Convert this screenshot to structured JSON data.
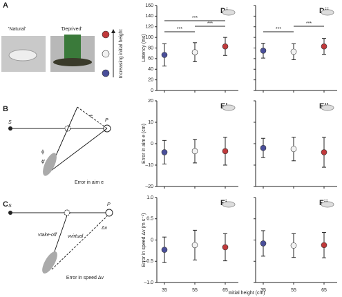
{
  "figure": {
    "panel_a": {
      "label": "A",
      "left": "'Natural'",
      "right": "'Deprived'",
      "arrow": "Increasing initial height"
    },
    "panel_b": {
      "label": "B",
      "s": "S",
      "p": "P",
      "e": "e",
      "phi": "ϕ",
      "phi2": "ϕ'",
      "caption": "Error in aim e"
    },
    "panel_c": {
      "label": "C",
      "s": "S",
      "p": "P",
      "v1": "vtake-off",
      "v2": "vvirtual",
      "dv": "Δv",
      "caption": "Error in speed Δv"
    },
    "xlabel": "Initial height (cm)"
  },
  "chart_data": [
    {
      "type": "errorbar",
      "panel": "Di",
      "ylabel": "Latency (ms)",
      "values": [
        67,
        72,
        83
      ],
      "errors": [
        21,
        18,
        17
      ],
      "colors": [
        "#4a4f9a",
        "#f2f2f2",
        "#c0393b"
      ],
      "ylim": [
        0,
        160
      ],
      "yticks": [
        0,
        20,
        40,
        60,
        80,
        100,
        120,
        140,
        160
      ],
      "annotations": [
        "***",
        "***",
        "***"
      ]
    },
    {
      "type": "errorbar",
      "panel": "Dii",
      "values": [
        75,
        73,
        83
      ],
      "errors": [
        14,
        15,
        15
      ],
      "colors": [
        "#4a4f9a",
        "#f2f2f2",
        "#c0393b"
      ],
      "ylim": [
        0,
        160
      ],
      "yticks": [
        0,
        20,
        40,
        60,
        80,
        100,
        120,
        140,
        160
      ],
      "annotations": [
        "***",
        "***"
      ]
    },
    {
      "type": "errorbar",
      "panel": "Ei",
      "ylabel": "Error in aim e (cm)",
      "values": [
        -4,
        -3.5,
        -3.5
      ],
      "errors": [
        5.5,
        5.5,
        6.5
      ],
      "colors": [
        "#4a4f9a",
        "#f2f2f2",
        "#c0393b"
      ],
      "ylim": [
        -20,
        20
      ],
      "yticks": [
        {
          "value": -20,
          "label": "–20"
        },
        {
          "value": -10,
          "label": "–10"
        },
        0,
        10,
        20
      ]
    },
    {
      "type": "errorbar",
      "panel": "Eii",
      "values": [
        -2,
        -2.5,
        -4
      ],
      "errors": [
        4.5,
        5.5,
        7
      ],
      "colors": [
        "#4a4f9a",
        "#f2f2f2",
        "#c0393b"
      ],
      "ylim": [
        -20,
        20
      ],
      "yticks": [
        -20,
        -10,
        0,
        10,
        20
      ]
    },
    {
      "type": "errorbar",
      "panel": "Fi",
      "ylabel": "Error in speed Δv (m s⁻¹)",
      "categories": [
        "35",
        "55",
        "65"
      ],
      "values": [
        -0.23,
        -0.12,
        -0.17
      ],
      "errors": [
        0.3,
        0.35,
        0.32
      ],
      "colors": [
        "#4a4f9a",
        "#f2f2f2",
        "#c0393b"
      ],
      "ylim": [
        -1,
        1
      ],
      "yticks": [
        {
          "value": -1,
          "label": "–1.0"
        },
        {
          "value": -0.5,
          "label": "–0.5"
        },
        0,
        {
          "value": 0.5,
          "label": "0.5"
        },
        {
          "value": 1,
          "label": "1.0"
        }
      ]
    },
    {
      "type": "errorbar",
      "panel": "Fii",
      "categories": [
        "35",
        "55",
        "65"
      ],
      "values": [
        -0.08,
        -0.13,
        -0.12
      ],
      "errors": [
        0.3,
        0.28,
        0.3
      ],
      "colors": [
        "#4a4f9a",
        "#f2f2f2",
        "#c0393b"
      ],
      "ylim": [
        -1,
        1
      ],
      "yticks": [
        -1,
        -0.5,
        0,
        0.5,
        1
      ]
    }
  ]
}
